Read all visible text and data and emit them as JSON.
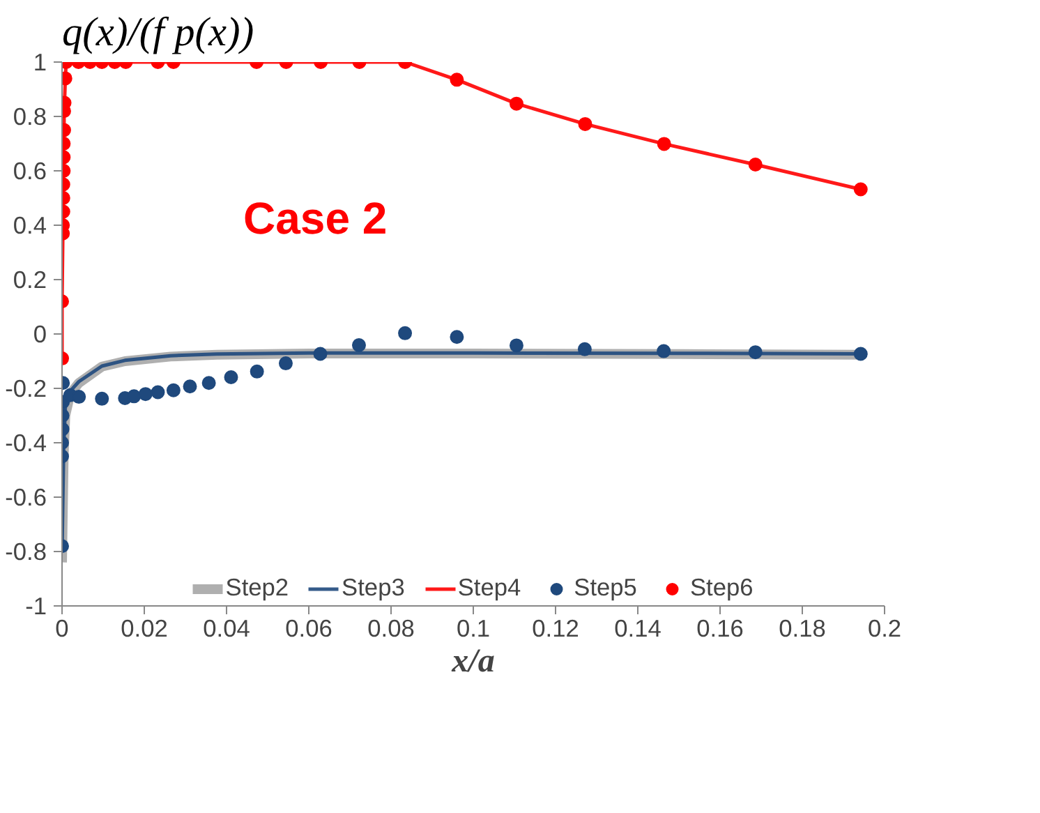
{
  "chart_data": {
    "type": "line",
    "ylabel": "q(x)/(f p(x))",
    "xlabel": "x/a",
    "annotations": [
      "Case 2"
    ],
    "xlim": [
      0,
      0.2
    ],
    "ylim": [
      -1,
      1
    ],
    "xticks": [
      0,
      0.02,
      0.04,
      0.06,
      0.08,
      0.1,
      0.12,
      0.14,
      0.16,
      0.18,
      0.2
    ],
    "yticks": [
      -1,
      -0.8,
      -0.6,
      -0.4,
      -0.2,
      0,
      0.2,
      0.4,
      0.6,
      0.8,
      1
    ],
    "grid": false,
    "legend": "bottom",
    "series": [
      {
        "name": "Step2",
        "color": "#a6a6a6",
        "x": [
          0,
          0.0004,
          0.0008,
          0.002,
          0.0041,
          0.0097,
          0.0153,
          0.0264,
          0.0376,
          0.06,
          0.1,
          0.15,
          0.194
        ],
        "values": [
          -0.84,
          -0.45,
          -0.3,
          -0.22,
          -0.18,
          -0.12,
          -0.1,
          -0.083,
          -0.076,
          -0.072,
          -0.072,
          -0.074,
          -0.076
        ]
      },
      {
        "name": "Step3",
        "color": "#1f497d",
        "x": [
          0,
          0.0004,
          0.0008,
          0.002,
          0.0041,
          0.0097,
          0.0153,
          0.0264,
          0.0376,
          0.06,
          0.1,
          0.15,
          0.194
        ],
        "values": [
          -0.8,
          -0.42,
          -0.27,
          -0.21,
          -0.175,
          -0.118,
          -0.097,
          -0.08,
          -0.074,
          -0.07,
          -0.07,
          -0.071,
          -0.073
        ]
      },
      {
        "name": "Step4",
        "color": "#ff0000",
        "x": [
          0,
          0,
          0.0002,
          0.0002,
          0.0003,
          0.0003,
          0.0003,
          0.0004,
          0.0004,
          0.0004,
          0.0005,
          0.0005,
          0.0006,
          0.0008,
          0.001,
          0.004,
          0.0068,
          0.0097,
          0.0128,
          0.0155,
          0.0233,
          0.0271,
          0.0473,
          0.0545,
          0.0629,
          0.0723,
          0.0834,
          0.096,
          0.1105,
          0.1272,
          0.1464,
          0.1686,
          0.1942
        ],
        "values": [
          -0.09,
          0.12,
          0.37,
          0.4,
          0.45,
          0.5,
          0.55,
          0.6,
          0.65,
          0.7,
          0.75,
          0.82,
          0.85,
          0.94,
          1,
          1,
          1,
          1,
          1,
          1,
          1,
          1,
          1,
          1,
          1,
          1,
          1,
          0.935,
          0.847,
          0.772,
          0.699,
          0.623,
          0.532
        ]
      },
      {
        "name": "Step5",
        "type": "scatter",
        "color": "#1f497d",
        "x": [
          0,
          0,
          0,
          0.0001,
          0.0001,
          0.0002,
          0.0002,
          0.002,
          0.0041,
          0.0097,
          0.0153,
          0.0175,
          0.0203,
          0.0233,
          0.0271,
          0.0311,
          0.0357,
          0.0411,
          0.0474,
          0.0544,
          0.0628,
          0.0722,
          0.0834,
          0.096,
          0.1105,
          0.1271,
          0.1463,
          0.1686,
          0.1942
        ],
        "values": [
          -0.78,
          -0.45,
          -0.4,
          -0.35,
          -0.3,
          -0.25,
          -0.18,
          -0.225,
          -0.231,
          -0.238,
          -0.236,
          -0.229,
          -0.221,
          -0.214,
          -0.207,
          -0.193,
          -0.18,
          -0.159,
          -0.138,
          -0.108,
          -0.073,
          -0.041,
          0.003,
          -0.011,
          -0.042,
          -0.056,
          -0.063,
          -0.067,
          -0.073
        ]
      },
      {
        "name": "Step6",
        "type": "scatter",
        "color": "#ff0000",
        "x": [
          0,
          0,
          0.0002,
          0.0002,
          0.0003,
          0.0003,
          0.0003,
          0.0004,
          0.0004,
          0.0004,
          0.0005,
          0.0005,
          0.0006,
          0.0008,
          0.001,
          0.004,
          0.0068,
          0.0097,
          0.0128,
          0.0155,
          0.0233,
          0.0271,
          0.0473,
          0.0545,
          0.0629,
          0.0723,
          0.0834,
          0.096,
          0.1105,
          0.1272,
          0.1464,
          0.1686,
          0.1942
        ],
        "values": [
          -0.09,
          0.12,
          0.37,
          0.4,
          0.45,
          0.5,
          0.55,
          0.6,
          0.65,
          0.7,
          0.75,
          0.82,
          0.85,
          0.94,
          1,
          1,
          1,
          1,
          1,
          1,
          1,
          1,
          1,
          1,
          1,
          1,
          1,
          0.935,
          0.847,
          0.772,
          0.699,
          0.623,
          0.532
        ]
      }
    ]
  }
}
